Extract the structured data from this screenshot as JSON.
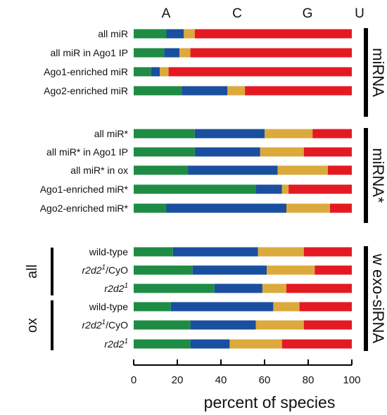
{
  "chart_data": {
    "type": "bar",
    "stacked": true,
    "orientation": "horizontal",
    "xlabel": "percent of species",
    "xlim": [
      0,
      100
    ],
    "xticks": [
      0,
      20,
      40,
      60,
      80,
      100
    ],
    "legend": [
      {
        "name": "A",
        "color": "#1e8c44"
      },
      {
        "name": "C",
        "color": "#1a4fa0"
      },
      {
        "name": "G",
        "color": "#dca93c"
      },
      {
        "name": "U",
        "color": "#e41a23"
      }
    ],
    "groups": [
      {
        "label": "miRNA",
        "rows": [
          {
            "label": "all miR",
            "values": [
              15,
              8,
              5,
              72
            ]
          },
          {
            "label": "all miR in Ago1 IP",
            "values": [
              14,
              7,
              5,
              74
            ]
          },
          {
            "label": "Ago1-enriched miR",
            "values": [
              8,
              4,
              4,
              84
            ]
          },
          {
            "label": "Ago2-enriched miR",
            "values": [
              22,
              21,
              8,
              49
            ]
          }
        ]
      },
      {
        "label": "miRNA*",
        "rows": [
          {
            "label": "all miR*",
            "values": [
              28,
              32,
              22,
              18
            ]
          },
          {
            "label": "all miR* in Ago1 IP",
            "values": [
              28,
              30,
              20,
              22
            ]
          },
          {
            "label": "all miR* in ox",
            "values": [
              25,
              41,
              23,
              11
            ]
          },
          {
            "label": "Ago1-enriched miR*",
            "values": [
              56,
              12,
              3,
              29
            ]
          },
          {
            "label": "Ago2-enriched miR*",
            "values": [
              15,
              55,
              20,
              10
            ]
          }
        ]
      },
      {
        "label": "w exo-siRNA",
        "rows": [
          {
            "label": "wild-type",
            "subgroup": "all",
            "values": [
              18,
              39,
              21,
              22
            ]
          },
          {
            "label": "r2d2",
            "sup": "1",
            "suffix": "/CyO",
            "subgroup": "all",
            "values": [
              27,
              34,
              22,
              17
            ]
          },
          {
            "label": "r2d2",
            "sup": "1",
            "suffix": "",
            "subgroup": "all",
            "values": [
              37,
              22,
              11,
              30
            ]
          },
          {
            "label": "wild-type",
            "subgroup": "ox",
            "values": [
              17,
              47,
              12,
              24
            ]
          },
          {
            "label": "r2d2",
            "sup": "1",
            "suffix": "/CyO",
            "subgroup": "ox",
            "values": [
              26,
              30,
              22,
              22
            ]
          },
          {
            "label": "r2d2",
            "sup": "1",
            "suffix": "",
            "subgroup": "ox",
            "values": [
              26,
              18,
              24,
              32
            ]
          }
        ]
      }
    ],
    "subgroups": [
      "all",
      "ox"
    ]
  }
}
